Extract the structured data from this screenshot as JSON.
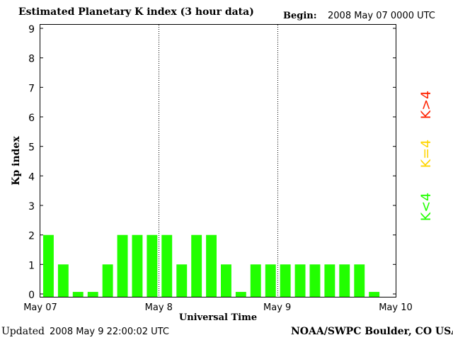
{
  "header": {
    "title": "Estimated Planetary K index (3 hour data)",
    "begin_label": "Begin:",
    "begin_value": "2008 May 07 0000 UTC"
  },
  "footer": {
    "updated_label": "Updated",
    "updated_value": "2008 May  9 22:00:02 UTC",
    "credit": "NOAA/SWPC Boulder, CO USA"
  },
  "legend": {
    "high": "K>4",
    "mid": "K=4",
    "low": "K<4",
    "colors": {
      "high": "#ff2200",
      "mid": "#ffd400",
      "low": "#22ff00"
    }
  },
  "chart_data": {
    "type": "bar",
    "title": "Estimated Planetary K index (3 hour data)",
    "xlabel": "Universal Time",
    "ylabel": "Kp index",
    "ylim": [
      0,
      9
    ],
    "yticks": [
      "0",
      "1",
      "2",
      "3",
      "4",
      "5",
      "6",
      "7",
      "8",
      "9"
    ],
    "xticks": [
      "May 07",
      "May 8",
      "May 9",
      "May 10"
    ],
    "xlim": [
      0,
      24
    ],
    "bar_color": "#22ff00",
    "grid": "dotted vertical lines at day boundaries",
    "categories": [
      "May 07 00-03",
      "May 07 03-06",
      "May 07 06-09",
      "May 07 09-12",
      "May 07 12-15",
      "May 07 15-18",
      "May 07 18-21",
      "May 07 21-24",
      "May 8 00-03",
      "May 8 03-06",
      "May 8 06-09",
      "May 8 09-12",
      "May 8 12-15",
      "May 8 15-18",
      "May 8 18-21",
      "May 8 21-24",
      "May 9 00-03",
      "May 9 03-06",
      "May 9 06-09",
      "May 9 09-12",
      "May 9 12-15",
      "May 9 15-18",
      "May 9 18-21"
    ],
    "values": [
      2,
      1,
      0.07,
      0.07,
      1,
      2,
      2,
      2,
      2,
      1,
      2,
      2,
      1,
      0.07,
      1,
      1,
      1,
      1,
      1,
      1,
      1,
      1,
      0.07
    ]
  }
}
